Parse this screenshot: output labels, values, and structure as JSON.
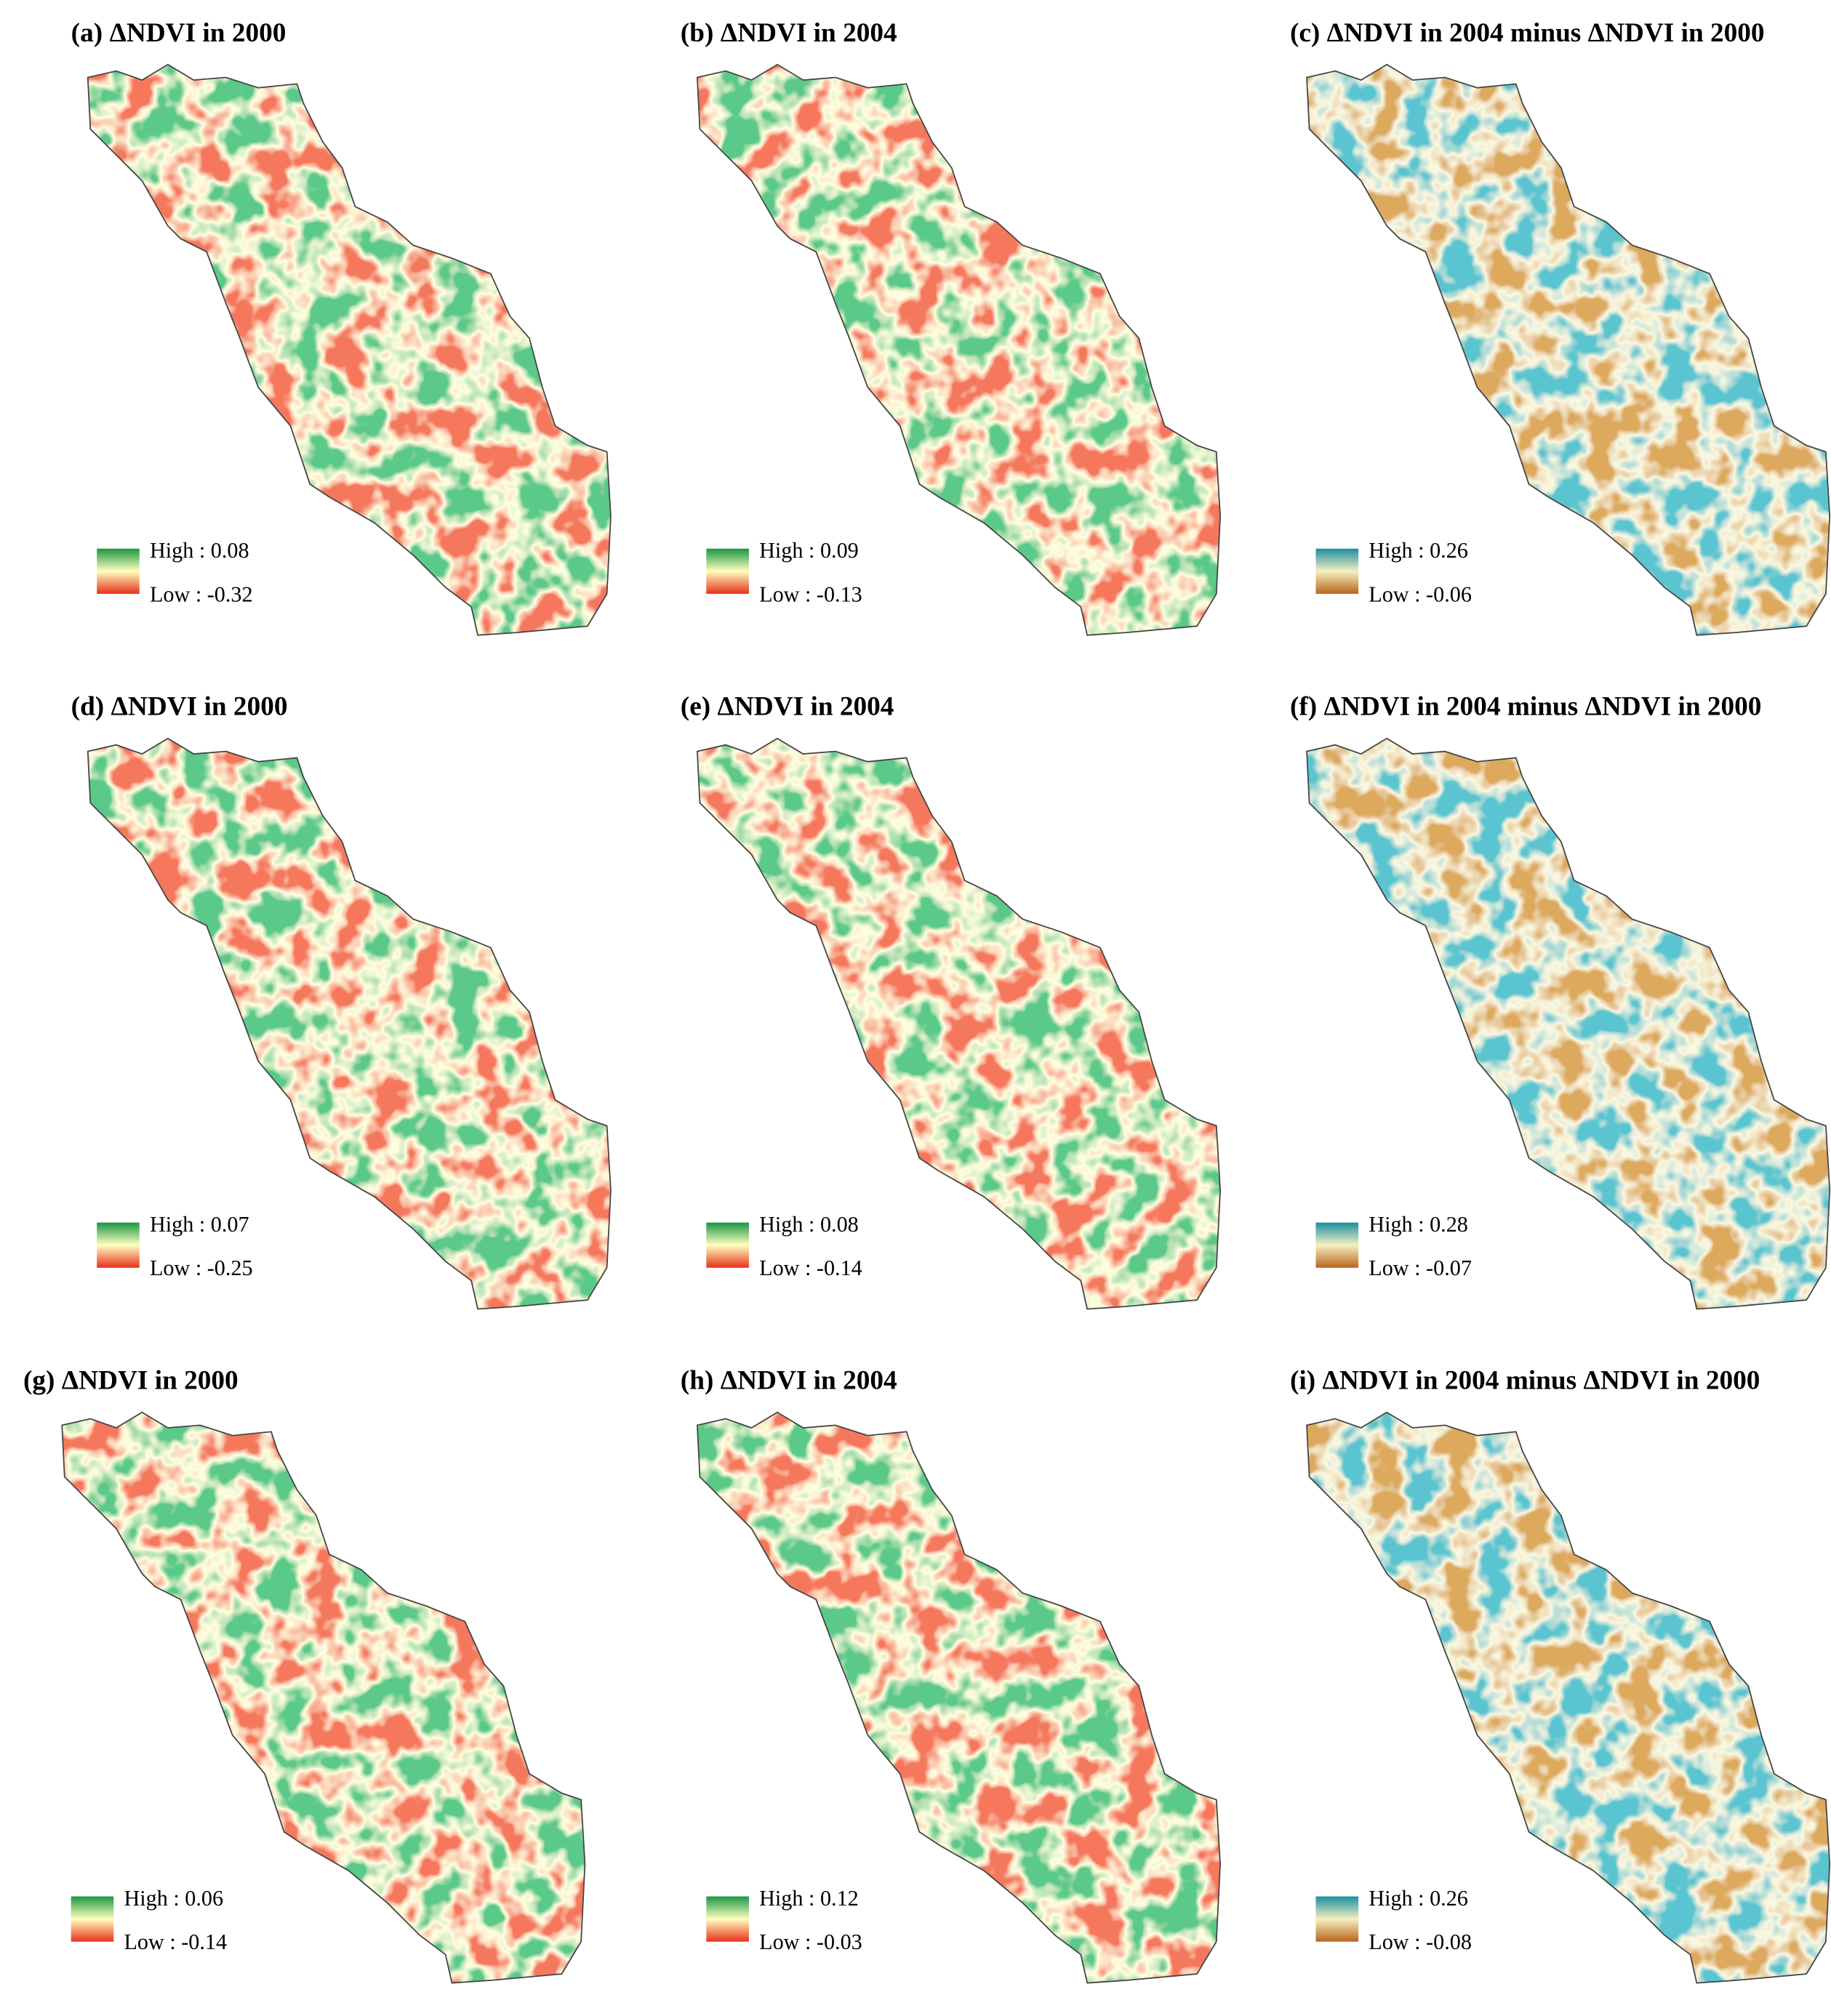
{
  "panels": [
    {
      "title": "(a) ΔNDVI in 2000",
      "high": "High : 0.08",
      "low": "Low : -0.32",
      "colors": [
        "#1a9641",
        "#ffffbf",
        "#e8301c"
      ]
    },
    {
      "title": "(b) ΔNDVI in 2004",
      "high": "High : 0.09",
      "low": "Low : -0.13",
      "colors": [
        "#1a9641",
        "#ffffbf",
        "#e8301c"
      ]
    },
    {
      "title": "(c) ΔNDVI in 2004 minus ΔNDVI in 2000",
      "high": "High : 0.26",
      "low": "Low : -0.06",
      "colors": [
        "#1a8fa0",
        "#f5f0c0",
        "#b8651c"
      ]
    },
    {
      "title": "(d) ΔNDVI in 2000",
      "high": "High : 0.07",
      "low": "Low : -0.25",
      "colors": [
        "#1a9641",
        "#ffffbf",
        "#e8301c"
      ]
    },
    {
      "title": "(e) ΔNDVI in 2004",
      "high": "High : 0.08",
      "low": "Low : -0.14",
      "colors": [
        "#1a9641",
        "#ffffbf",
        "#e8301c"
      ]
    },
    {
      "title": "(f) ΔNDVI in 2004 minus ΔNDVI in 2000",
      "high": "High : 0.28",
      "low": "Low : -0.07",
      "colors": [
        "#1a8fa0",
        "#f5f0c0",
        "#b8651c"
      ]
    },
    {
      "title": "(g) ΔNDVI in 2000",
      "high": "High : 0.06",
      "low": "Low : -0.14",
      "colors": [
        "#1a9641",
        "#ffffbf",
        "#e8301c"
      ]
    },
    {
      "title": "(h) ΔNDVI in 2004",
      "high": "High : 0.12",
      "low": "Low : -0.03",
      "colors": [
        "#1a9641",
        "#ffffbf",
        "#e8301c"
      ]
    },
    {
      "title": "(i) ΔNDVI in 2004 minus ΔNDVI in 2000",
      "high": "High : 0.26",
      "low": "Low : -0.08",
      "colors": [
        "#1a8fa0",
        "#f5f0c0",
        "#b8651c"
      ]
    }
  ]
}
